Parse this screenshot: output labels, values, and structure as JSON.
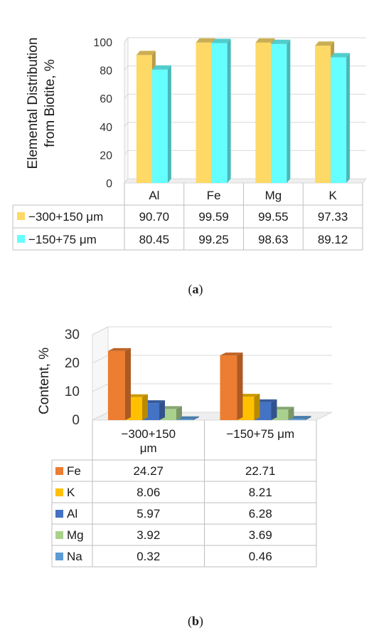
{
  "chart_data": [
    {
      "type": "bar",
      "ylabel": "Elemental Distribution from Biotite, %",
      "ylabel_lines": [
        "Elemental Distribution",
        "from Biotite, %"
      ],
      "ylim": [
        0,
        100
      ],
      "yticks": [
        "0",
        "20",
        "40",
        "60",
        "80",
        "100"
      ],
      "categories": [
        "Al",
        "Fe",
        "Mg",
        "K"
      ],
      "series": [
        {
          "name": "−300+150 μm",
          "values": [
            90.7,
            99.59,
            99.55,
            97.33
          ],
          "labels": [
            "90.70",
            "99.59",
            "99.55",
            "97.33"
          ],
          "color": "#FFD966"
        },
        {
          "name": "−150+75 μm",
          "values": [
            80.45,
            99.25,
            98.63,
            89.12
          ],
          "labels": [
            "80.45",
            "99.25",
            "98.63",
            "89.12"
          ],
          "color": "#66FFFF"
        }
      ],
      "legend": "data-table",
      "grid": true,
      "caption": "a"
    },
    {
      "type": "bar",
      "ylabel": "Content, %",
      "ylim": [
        0,
        30
      ],
      "yticks": [
        "0",
        "10",
        "20",
        "30"
      ],
      "categories": [
        "−300+150 μm",
        "−150+75 μm"
      ],
      "category_lines": [
        [
          "−300+150",
          "μm"
        ],
        [
          "−150+75 μm"
        ]
      ],
      "series": [
        {
          "name": "Fe",
          "values": [
            24.27,
            22.71
          ],
          "labels": [
            "24.27",
            "22.71"
          ],
          "color": "#ED7D31"
        },
        {
          "name": "K",
          "values": [
            8.06,
            8.21
          ],
          "labels": [
            "8.06",
            "8.21"
          ],
          "color": "#FFC000"
        },
        {
          "name": "Al",
          "values": [
            5.97,
            6.28
          ],
          "labels": [
            "5.97",
            "6.28"
          ],
          "color": "#4472C4"
        },
        {
          "name": "Mg",
          "values": [
            3.92,
            3.69
          ],
          "labels": [
            "3.92",
            "3.69"
          ],
          "color": "#A9D18E"
        },
        {
          "name": "Na",
          "values": [
            0.32,
            0.46
          ],
          "labels": [
            "0.32",
            "0.46"
          ],
          "color": "#5B9BD5"
        }
      ],
      "legend": "data-table",
      "grid": true,
      "caption": "b"
    }
  ]
}
